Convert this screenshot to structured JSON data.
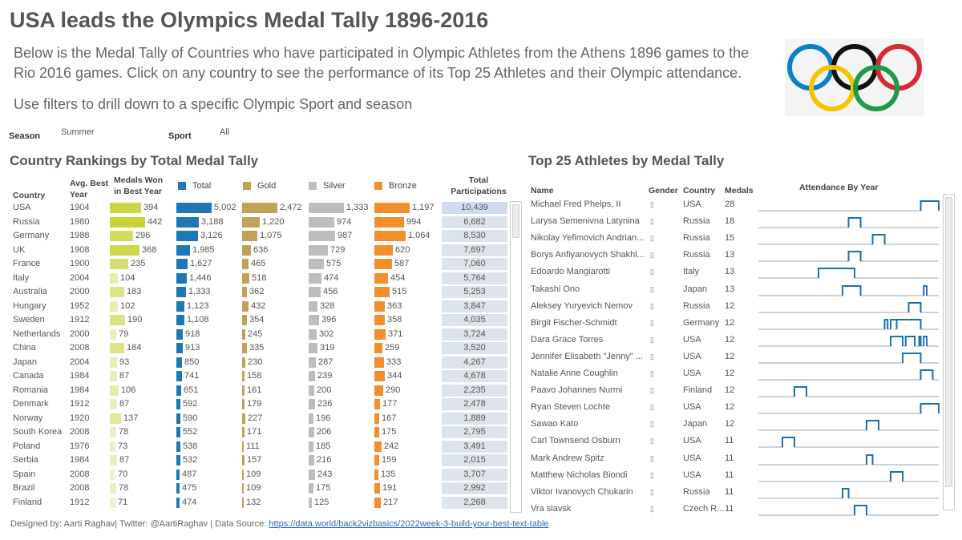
{
  "header": {
    "title": "USA leads the Olympics Medal Tally 1896-2016",
    "intro_line1": "Below is the Medal Tally of Countries who have participated in Olympic Athletes from the Athens 1896 games to the",
    "intro_line2": "Rio 2016 games. Click on any country to see the performance of its Top 25 Athletes and their Olympic attendance.",
    "intro_line3": "Use filters to drill down to a specific Olympic Sport and season"
  },
  "filters": {
    "season_label": "Season",
    "season_value": "Summer",
    "sport_label": "Sport",
    "sport_value": "All"
  },
  "colors": {
    "total": "#1f77b4",
    "gold": "#c2a257",
    "silver": "#bdbdbd",
    "bronze": "#f28e2b",
    "best_year_high": "#c9d434",
    "best_year_low": "#f0f2d6",
    "attendance": "#1f6faf",
    "attendance_base": "#b8c3cf",
    "participation_box": "#dde3ea"
  },
  "country_table": {
    "section_title": "Country Rankings by Total Medal Tally",
    "col_country": "Country",
    "col_best_year_l1": "Avg. Best",
    "col_best_year_l2": "Year",
    "col_medals_best_l1": "Medals Won",
    "col_medals_best_l2": "in Best Year",
    "legend_total": "Total",
    "legend_gold": "Gold",
    "legend_silver": "Silver",
    "legend_bronze": "Bronze",
    "col_participations_l1": "Total",
    "col_participations_l2": "Participations"
  },
  "chart_data": {
    "type": "table",
    "title": "Country Rankings by Total Medal Tally",
    "rows": [
      {
        "country": "USA",
        "best_year": "1904",
        "medals_best": 394,
        "total": "5,002",
        "gold": "2,472",
        "silver": "1,333",
        "bronze": "1,197",
        "participations": "10,439"
      },
      {
        "country": "Russia",
        "best_year": "1980",
        "medals_best": 442,
        "total": "3,188",
        "gold": "1,220",
        "silver": "974",
        "bronze": "994",
        "participations": "6,682"
      },
      {
        "country": "Germany",
        "best_year": "1988",
        "medals_best": 296,
        "total": "3,126",
        "gold": "1,075",
        "silver": "987",
        "bronze": "1,064",
        "participations": "8,530"
      },
      {
        "country": "UK",
        "best_year": "1908",
        "medals_best": 368,
        "total": "1,985",
        "gold": "636",
        "silver": "729",
        "bronze": "620",
        "participations": "7,697"
      },
      {
        "country": "France",
        "best_year": "1900",
        "medals_best": 235,
        "total": "1,627",
        "gold": "465",
        "silver": "575",
        "bronze": "587",
        "participations": "7,060"
      },
      {
        "country": "Italy",
        "best_year": "2004",
        "medals_best": 104,
        "total": "1,446",
        "gold": "518",
        "silver": "474",
        "bronze": "454",
        "participations": "5,764"
      },
      {
        "country": "Australia",
        "best_year": "2000",
        "medals_best": 183,
        "total": "1,333",
        "gold": "362",
        "silver": "456",
        "bronze": "515",
        "participations": "5,253"
      },
      {
        "country": "Hungary",
        "best_year": "1952",
        "medals_best": 102,
        "total": "1,123",
        "gold": "432",
        "silver": "328",
        "bronze": "363",
        "participations": "3,847"
      },
      {
        "country": "Sweden",
        "best_year": "1912",
        "medals_best": 190,
        "total": "1,108",
        "gold": "354",
        "silver": "396",
        "bronze": "358",
        "participations": "4,035"
      },
      {
        "country": "Netherlands",
        "best_year": "2000",
        "medals_best": 79,
        "total": "918",
        "gold": "245",
        "silver": "302",
        "bronze": "371",
        "participations": "3,724"
      },
      {
        "country": "China",
        "best_year": "2008",
        "medals_best": 184,
        "total": "913",
        "gold": "335",
        "silver": "319",
        "bronze": "259",
        "participations": "3,520"
      },
      {
        "country": "Japan",
        "best_year": "2004",
        "medals_best": 93,
        "total": "850",
        "gold": "230",
        "silver": "287",
        "bronze": "333",
        "participations": "4,267"
      },
      {
        "country": "Canada",
        "best_year": "1984",
        "medals_best": 87,
        "total": "741",
        "gold": "158",
        "silver": "239",
        "bronze": "344",
        "participations": "4,678"
      },
      {
        "country": "Romania",
        "best_year": "1984",
        "medals_best": 106,
        "total": "651",
        "gold": "161",
        "silver": "200",
        "bronze": "290",
        "participations": "2,235"
      },
      {
        "country": "Denmark",
        "best_year": "1912",
        "medals_best": 87,
        "total": "592",
        "gold": "179",
        "silver": "236",
        "bronze": "177",
        "participations": "2,478"
      },
      {
        "country": "Norway",
        "best_year": "1920",
        "medals_best": 137,
        "total": "590",
        "gold": "227",
        "silver": "196",
        "bronze": "167",
        "participations": "1,889"
      },
      {
        "country": "South Korea",
        "best_year": "2008",
        "medals_best": 78,
        "total": "552",
        "gold": "171",
        "silver": "206",
        "bronze": "175",
        "participations": "2,795"
      },
      {
        "country": "Poland",
        "best_year": "1976",
        "medals_best": 73,
        "total": "538",
        "gold": "111",
        "silver": "185",
        "bronze": "242",
        "participations": "3,491"
      },
      {
        "country": "Serbia",
        "best_year": "1984",
        "medals_best": 87,
        "total": "532",
        "gold": "157",
        "silver": "216",
        "bronze": "159",
        "participations": "2,015"
      },
      {
        "country": "Spain",
        "best_year": "2008",
        "medals_best": 70,
        "total": "487",
        "gold": "109",
        "silver": "243",
        "bronze": "135",
        "participations": "3,707"
      },
      {
        "country": "Brazil",
        "best_year": "2008",
        "medals_best": 78,
        "total": "475",
        "gold": "109",
        "silver": "175",
        "bronze": "191",
        "participations": "2,992"
      },
      {
        "country": "Finland",
        "best_year": "1912",
        "medals_best": 71,
        "total": "474",
        "gold": "132",
        "silver": "125",
        "bronze": "217",
        "participations": "2,268"
      }
    ],
    "athletes_title": "Top 25 Athletes by Medal Tally",
    "attendance_year_range": [
      1896,
      2016
    ],
    "athletes": [
      {
        "name": "Michael Fred Phelps, II",
        "gender": "▯",
        "country": "USA",
        "medals": "28",
        "attendance": [
          [
            2004,
            2016
          ]
        ]
      },
      {
        "name": "Larysa Semenivna Latynina",
        "gender": "▯",
        "country": "Russia",
        "medals": "18",
        "attendance": [
          [
            1956,
            1964
          ]
        ]
      },
      {
        "name": "Nikolay Yefimovich Andrian...",
        "gender": "▯",
        "country": "Russia",
        "medals": "15",
        "attendance": [
          [
            1972,
            1980
          ]
        ]
      },
      {
        "name": "Borys Anfiyanovych Shakhl...",
        "gender": "▯",
        "country": "Russia",
        "medals": "13",
        "attendance": [
          [
            1956,
            1964
          ]
        ]
      },
      {
        "name": "Edoardo Mangiarotti",
        "gender": "▯",
        "country": "Italy",
        "medals": "13",
        "attendance": [
          [
            1936,
            1960
          ]
        ]
      },
      {
        "name": "Takashi Ono",
        "gender": "▯",
        "country": "Japan",
        "medals": "13",
        "attendance": [
          [
            1952,
            1964
          ],
          [
            2006,
            2008
          ]
        ]
      },
      {
        "name": "Aleksey Yuryevich Nemov",
        "gender": "▯",
        "country": "Russia",
        "medals": "12",
        "attendance": [
          [
            1996,
            2004
          ]
        ]
      },
      {
        "name": "Birgit Fischer-Schmidt",
        "gender": "▯",
        "country": "Germany",
        "medals": "12",
        "attendance": [
          [
            1980,
            1982
          ],
          [
            1984,
            1988
          ],
          [
            1988,
            2004
          ]
        ]
      },
      {
        "name": "Dara Grace Torres",
        "gender": "▯",
        "country": "USA",
        "medals": "12",
        "attendance": [
          [
            1984,
            1992
          ],
          [
            1994,
            2000
          ],
          [
            2003,
            2004
          ],
          [
            2006,
            2008
          ]
        ]
      },
      {
        "name": "Jennifer Elisabeth \"Jenny\" ...",
        "gender": "▯",
        "country": "USA",
        "medals": "12",
        "attendance": [
          [
            1992,
            2004
          ]
        ]
      },
      {
        "name": "Natalie Anne Coughlin",
        "gender": "▯",
        "country": "USA",
        "medals": "12",
        "attendance": [
          [
            2004,
            2012
          ]
        ]
      },
      {
        "name": "Paavo Johannes Nurmi",
        "gender": "▯",
        "country": "Finland",
        "medals": "12",
        "attendance": [
          [
            1920,
            1928
          ]
        ]
      },
      {
        "name": "Ryan Steven Lochte",
        "gender": "▯",
        "country": "USA",
        "medals": "12",
        "attendance": [
          [
            2004,
            2016
          ]
        ]
      },
      {
        "name": "Sawao Kato",
        "gender": "▯",
        "country": "Japan",
        "medals": "12",
        "attendance": [
          [
            1968,
            1976
          ]
        ]
      },
      {
        "name": "Carl Townsend Osburn",
        "gender": "▯",
        "country": "USA",
        "medals": "11",
        "attendance": [
          [
            1912,
            1920
          ]
        ]
      },
      {
        "name": "Mark Andrew Spitz",
        "gender": "▯",
        "country": "USA",
        "medals": "11",
        "attendance": [
          [
            1968,
            1972
          ]
        ]
      },
      {
        "name": "Matthew Nicholas  Biondi",
        "gender": "▯",
        "country": "USA",
        "medals": "11",
        "attendance": [
          [
            1984,
            1992
          ]
        ]
      },
      {
        "name": "Viktor Ivanovych Chukarin",
        "gender": "▯",
        "country": "Russia",
        "medals": "11",
        "attendance": [
          [
            1952,
            1956
          ]
        ]
      },
      {
        "name": "Vra slavsk",
        "gender": "▯",
        "country": "Czech R...",
        "medals": "11",
        "attendance": [
          [
            1960,
            1968
          ]
        ]
      }
    ]
  },
  "athletes_table": {
    "section_title": "Top 25 Athletes by Medal Tally",
    "col_name": "Name",
    "col_gender": "Gender",
    "col_country": "Country",
    "col_medals": "Medals",
    "col_attendance": "Attendance By Year"
  },
  "footer": {
    "credit": "Designed by: Aarti Raghav| Twitter: @AartiRaghav | Data Source: ",
    "link_text": "https://data.world/back2vizbasics/2022week-3-build-your-best-text-table"
  }
}
